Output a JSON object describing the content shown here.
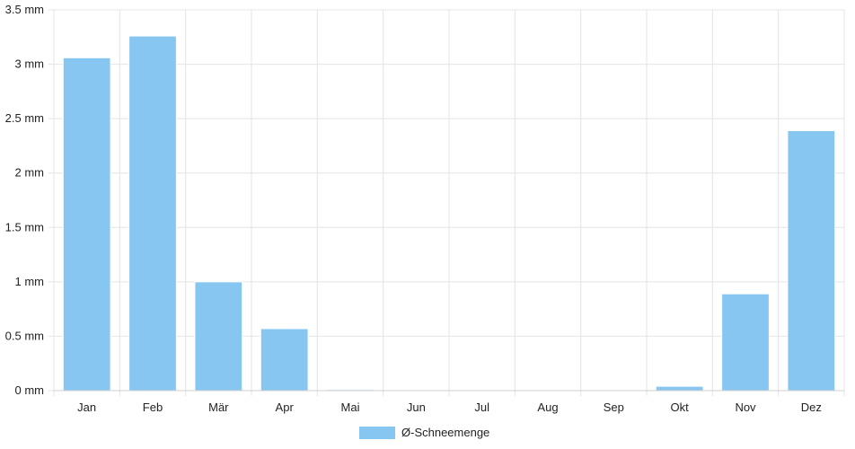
{
  "chart_data": {
    "type": "bar",
    "categories": [
      "Jan",
      "Feb",
      "Mär",
      "Apr",
      "Mai",
      "Jun",
      "Jul",
      "Aug",
      "Sep",
      "Okt",
      "Nov",
      "Dez"
    ],
    "series": [
      {
        "name": "Ø-Schneemenge",
        "values": [
          3.06,
          3.26,
          1.0,
          0.57,
          0.01,
          0,
          0,
          0,
          0,
          0.04,
          0.89,
          2.39
        ],
        "color": "#88c6f2"
      }
    ],
    "y_ticks": [
      "0 mm",
      "0.5 mm",
      "1 mm",
      "1.5 mm",
      "2 mm",
      "2.5 mm",
      "3 mm",
      "3.5 mm"
    ],
    "ylim": [
      0,
      3.5
    ],
    "grid": true,
    "legend_position": "bottom-center"
  }
}
